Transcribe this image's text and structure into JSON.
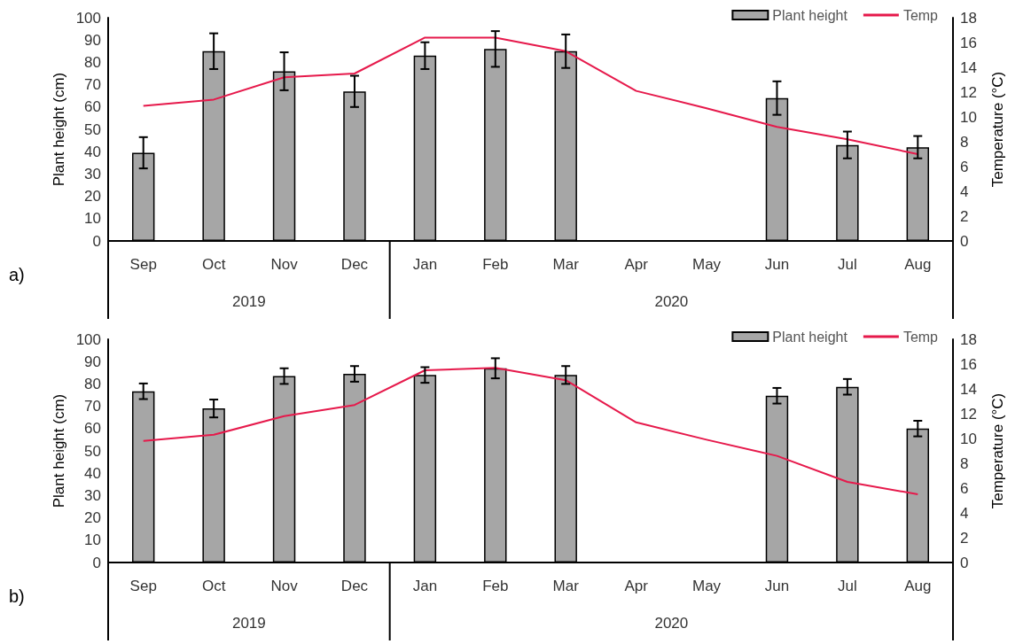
{
  "chart_data": [
    {
      "type": "bar",
      "ylabel": "Plant height (cm)",
      "y2label": "Temperature (°C)",
      "categories": [
        "Sep",
        "Oct",
        "Nov",
        "Dec",
        "Jan",
        "Feb",
        "Mar",
        "Apr",
        "May",
        "Jun",
        "Jul",
        "Aug"
      ],
      "series": [
        {
          "name": "Plant height",
          "color": "#a6a6a6",
          "values": [
            39.5,
            85,
            76,
            67,
            83,
            86,
            85,
            null,
            null,
            64,
            43,
            42
          ],
          "errors": [
            7,
            8,
            8.5,
            7,
            6,
            8,
            7.5,
            null,
            null,
            7.5,
            6,
            5
          ]
        },
        {
          "name": "Temp",
          "type": "line",
          "axis": "y2",
          "color": "#e6194b",
          "values": [
            10.9,
            11.4,
            13.2,
            13.5,
            16.4,
            16.4,
            15.3,
            12.1,
            10.7,
            9.2,
            8.2,
            7.0
          ]
        }
      ],
      "ylim": [
        0,
        100
      ],
      "yticks": [
        0,
        10,
        20,
        30,
        40,
        50,
        60,
        70,
        80,
        90,
        100
      ],
      "y2lim": [
        0,
        18
      ],
      "y2ticks": [
        0,
        2,
        4,
        6,
        8,
        10,
        12,
        14,
        16,
        18
      ],
      "annotations": [
        "a)",
        "2019",
        "2020"
      ],
      "legend": "top right",
      "grid": false,
      "marker": "none"
    },
    {
      "type": "bar",
      "ylabel": "Plant height (cm)",
      "y2label": "Temperature (°C)",
      "categories": [
        "Sep",
        "Oct",
        "Nov",
        "Dec",
        "Jan",
        "Feb",
        "Mar",
        "Apr",
        "May",
        "Jun",
        "Jul",
        "Aug"
      ],
      "series": [
        {
          "name": "Plant height",
          "color": "#a6a6a6",
          "values": [
            76.7,
            69,
            83.5,
            84.5,
            84,
            87,
            84,
            null,
            null,
            74.7,
            78.7,
            60
          ],
          "errors": [
            3.5,
            4,
            3.5,
            3.5,
            3.5,
            4.5,
            4,
            null,
            null,
            3.5,
            3.5,
            3.5
          ]
        },
        {
          "name": "Temp",
          "type": "line",
          "axis": "y2",
          "color": "#e6194b",
          "values": [
            9.8,
            10.3,
            11.8,
            12.7,
            15.5,
            15.7,
            14.7,
            11.3,
            9.9,
            8.6,
            6.5,
            5.5
          ]
        }
      ],
      "ylim": [
        0,
        100
      ],
      "yticks": [
        0,
        10,
        20,
        30,
        40,
        50,
        60,
        70,
        80,
        90,
        100
      ],
      "y2lim": [
        0,
        18
      ],
      "y2ticks": [
        0,
        2,
        4,
        6,
        8,
        10,
        12,
        14,
        16,
        18
      ],
      "annotations": [
        "b)",
        "2019",
        "2020"
      ],
      "legend": "top right",
      "grid": false,
      "marker": "none"
    }
  ]
}
